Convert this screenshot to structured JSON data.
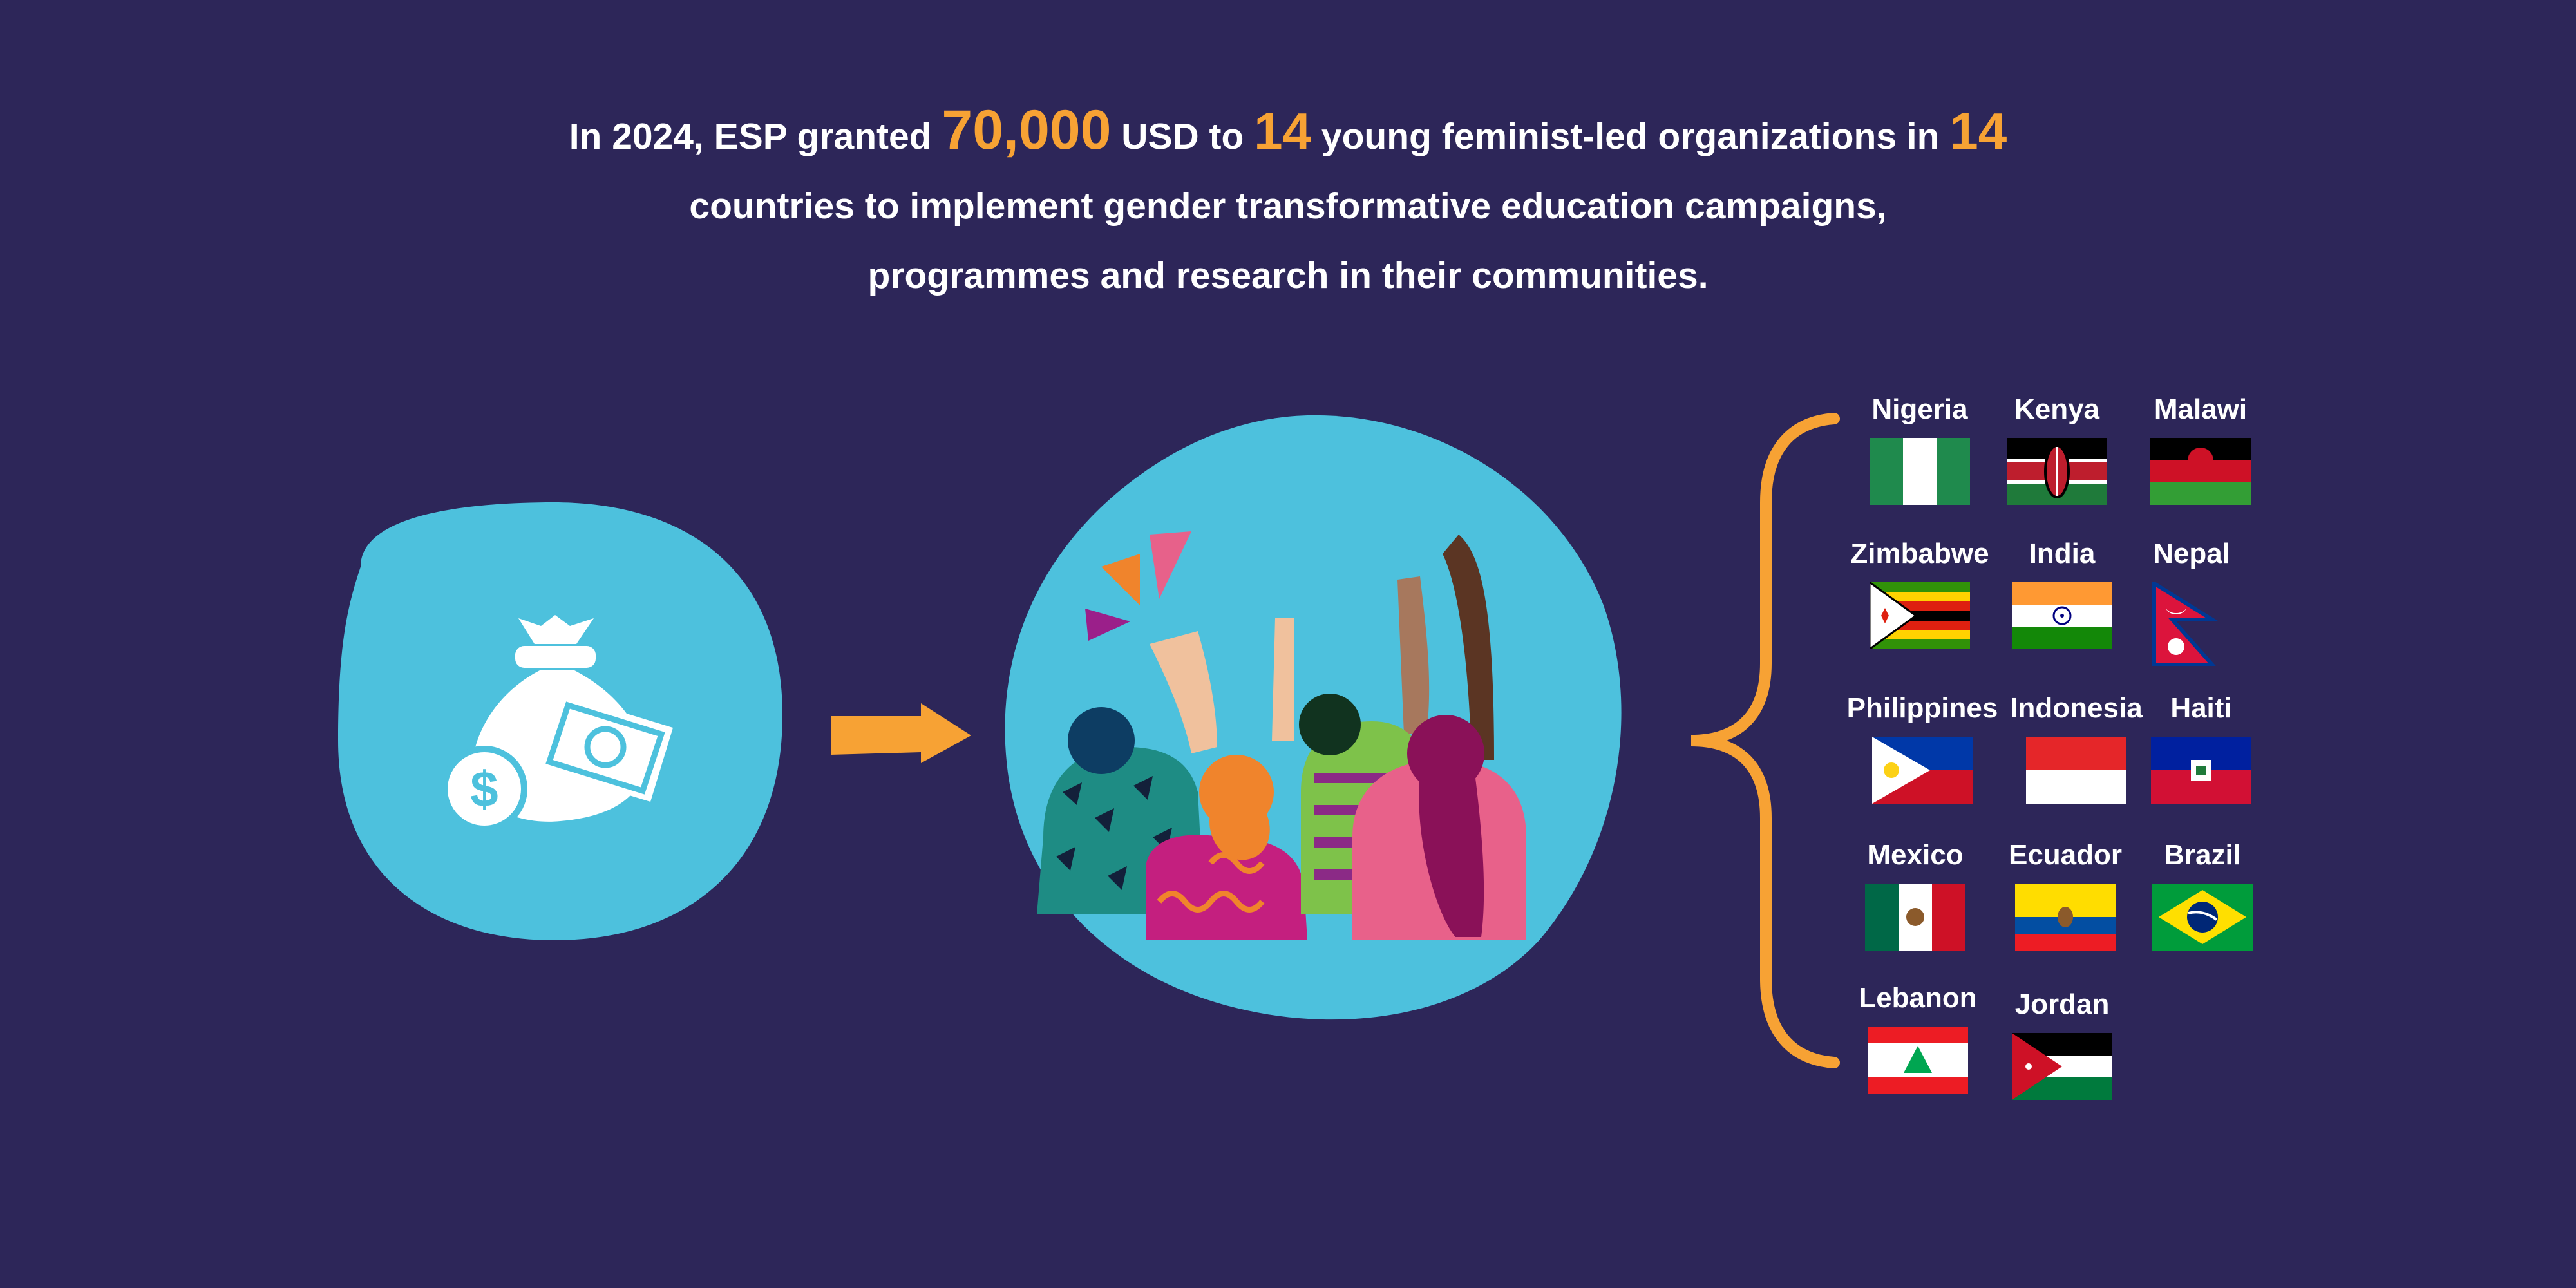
{
  "headline": {
    "part1": "In 2024, ESP granted ",
    "amount": "70,000",
    "part2": " USD to ",
    "orgs_count": "14",
    "part3": " young feminist-led organizations in ",
    "countries_count": "14",
    "line2": "countries to implement gender transformative education campaigns,",
    "line3": "programmes and research in their communities."
  },
  "icons": [
    "money-bag-icon",
    "dollar-coin-icon",
    "banknote-icon",
    "arrow-right-icon",
    "raised-hands-people-illustration"
  ],
  "colors": {
    "background": "#2d2659",
    "accent_orange": "#f7a234",
    "circle_blue": "#4dc1dd"
  },
  "countries": [
    {
      "name": "Nigeria"
    },
    {
      "name": "Kenya"
    },
    {
      "name": "Malawi"
    },
    {
      "name": "Zimbabwe"
    },
    {
      "name": "India"
    },
    {
      "name": "Nepal"
    },
    {
      "name": "Philippines"
    },
    {
      "name": "Indonesia"
    },
    {
      "name": "Haiti"
    },
    {
      "name": "Mexico"
    },
    {
      "name": "Ecuador"
    },
    {
      "name": "Brazil"
    },
    {
      "name": "Lebanon"
    },
    {
      "name": "Jordan"
    }
  ]
}
